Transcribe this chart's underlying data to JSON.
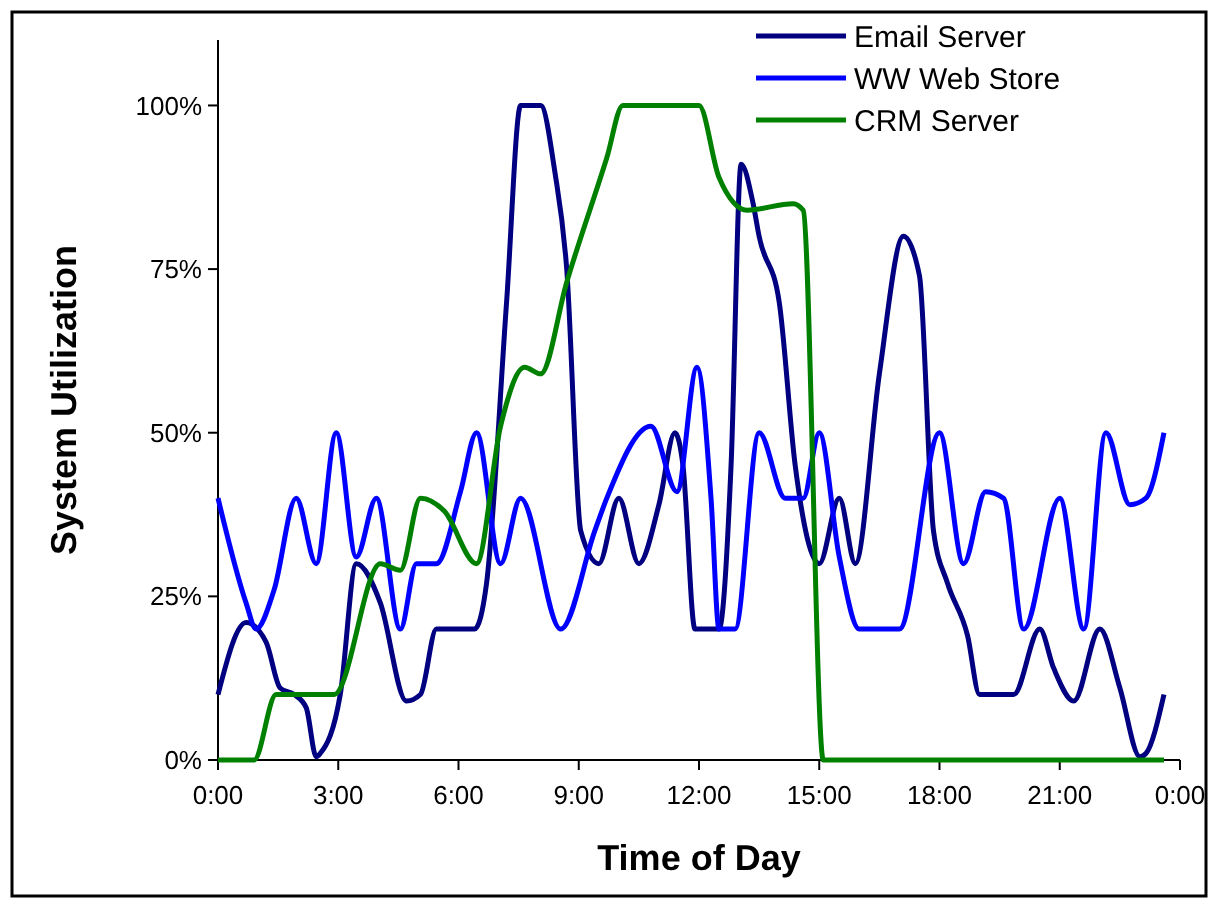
{
  "chart_data": {
    "type": "line",
    "xlabel": "Time of Day",
    "ylabel": "System Utilization",
    "xlim": [
      0,
      24
    ],
    "ylim": [
      0,
      110
    ],
    "xticks": [
      {
        "value": 0,
        "label": "0:00"
      },
      {
        "value": 3,
        "label": "3:00"
      },
      {
        "value": 6,
        "label": "6:00"
      },
      {
        "value": 9,
        "label": "9:00"
      },
      {
        "value": 12,
        "label": "12:00"
      },
      {
        "value": 15,
        "label": "15:00"
      },
      {
        "value": 18,
        "label": "18:00"
      },
      {
        "value": 21,
        "label": "21:00"
      },
      {
        "value": 24,
        "label": "0:00"
      }
    ],
    "yticks": [
      {
        "value": 0,
        "label": "0%"
      },
      {
        "value": 25,
        "label": "25%"
      },
      {
        "value": 50,
        "label": "50%"
      },
      {
        "value": 75,
        "label": "75%"
      },
      {
        "value": 100,
        "label": "100%"
      }
    ],
    "grid": false,
    "legend": "top right",
    "marker": "none",
    "line_style": "solid",
    "series": [
      {
        "name": "Email Server",
        "color": "#000080",
        "x": [
          0,
          0.7,
          1.2,
          1.55,
          1.9,
          2.2,
          2.45,
          2.55,
          3.05,
          3.45,
          4.05,
          4.7,
          5.05,
          5.45,
          6.4,
          6.7,
          7.2,
          7.55,
          8.05,
          8.4,
          8.7,
          9.05,
          9.5,
          10,
          10.5,
          11,
          11.4,
          11.6,
          11.9,
          12.5,
          12.8,
          13.05,
          13.35,
          13.5,
          14,
          14.4,
          15,
          15.5,
          15.9,
          16.5,
          17.1,
          17.5,
          17.85,
          18.2,
          18.7,
          19,
          19.85,
          20.5,
          20.85,
          21.35,
          22,
          22.5,
          23,
          23.15,
          23.6
        ],
        "values": [
          10,
          21,
          18,
          11,
          10,
          8,
          0.5,
          1,
          10,
          30,
          24,
          9,
          10,
          20,
          20,
          27,
          70,
          100,
          100,
          90,
          75,
          35,
          30,
          40,
          30,
          39,
          50,
          45,
          20,
          20,
          45,
          91,
          85,
          80,
          70,
          45,
          30,
          40,
          30,
          59,
          80,
          74,
          35,
          27,
          19,
          10,
          10,
          20,
          14,
          9,
          20,
          11,
          0.5,
          1,
          10
        ]
      },
      {
        "name": "WW Web Store",
        "color": "#0000ff",
        "x": [
          0,
          0.7,
          0.95,
          1.4,
          1.95,
          2.45,
          2.95,
          3.45,
          3.95,
          4.55,
          4.95,
          5.45,
          6.05,
          6.45,
          7.05,
          7.55,
          8.55,
          9.4,
          9.7,
          10.8,
          11.45,
          11.95,
          12.3,
          12.5,
          12.9,
          13.5,
          14.15,
          14.6,
          15,
          15.5,
          16,
          16.5,
          17,
          18,
          18.6,
          19.15,
          19.6,
          20.1,
          21,
          21.6,
          22.15,
          22.75,
          23.15,
          23.6
        ],
        "values": [
          40,
          24,
          20,
          26,
          40,
          30,
          50,
          31,
          40,
          20,
          30,
          30,
          41,
          50,
          30,
          40,
          20,
          35,
          40,
          51,
          41,
          60,
          40,
          20,
          20,
          50,
          40,
          40,
          50,
          31,
          20,
          20,
          20,
          50,
          30,
          41,
          40,
          20,
          40,
          20,
          50,
          39,
          40,
          50
        ]
      },
      {
        "name": "CRM Server",
        "color": "#008000",
        "x": [
          0,
          0.9,
          1.45,
          2.9,
          4.05,
          4.55,
          5.05,
          5.65,
          6.45,
          7.05,
          7.65,
          8.05,
          8.7,
          9.7,
          10.1,
          11.75,
          12,
          12.5,
          13.2,
          14.35,
          14.6,
          15.1,
          23.6
        ],
        "values": [
          0,
          0,
          10,
          10,
          30,
          29,
          40,
          38,
          30,
          51,
          60,
          59,
          73,
          92,
          100,
          100,
          100,
          89,
          84,
          85,
          84,
          0,
          0
        ]
      }
    ]
  }
}
